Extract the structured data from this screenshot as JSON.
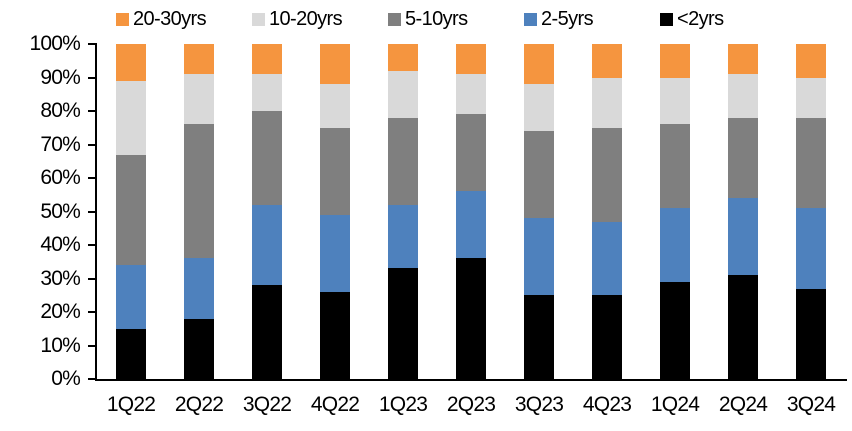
{
  "chart_data": {
    "type": "bar",
    "subtype": "stacked-100-percent",
    "title": "",
    "xlabel": "",
    "ylabel": "",
    "ylim": [
      0,
      100
    ],
    "grid": false,
    "legend_position": "top",
    "categories": [
      "1Q22",
      "2Q22",
      "3Q22",
      "4Q22",
      "1Q23",
      "2Q23",
      "3Q23",
      "4Q23",
      "1Q24",
      "2Q24",
      "3Q24"
    ],
    "series": [
      {
        "name": "<2yrs",
        "color": "#000000",
        "values": [
          15,
          18,
          28,
          26,
          33,
          36,
          25,
          25,
          29,
          31,
          27
        ]
      },
      {
        "name": "2-5yrs",
        "color": "#4E81BD",
        "values": [
          19,
          18,
          24,
          23,
          19,
          20,
          23,
          22,
          22,
          23,
          24
        ]
      },
      {
        "name": "5-10yrs",
        "color": "#7F7F7F",
        "values": [
          33,
          40,
          28,
          26,
          26,
          23,
          26,
          28,
          25,
          24,
          27
        ]
      },
      {
        "name": "10-20yrs",
        "color": "#D9D9D9",
        "values": [
          22,
          15,
          11,
          13,
          14,
          12,
          14,
          15,
          14,
          13,
          12
        ]
      },
      {
        "name": "20-30yrs",
        "color": "#F5953F",
        "values": [
          11,
          9,
          9,
          12,
          8,
          9,
          12,
          10,
          10,
          9,
          10
        ]
      }
    ],
    "legend_order": [
      "20-30yrs",
      "10-20yrs",
      "5-10yrs",
      "2-5yrs",
      "<2yrs"
    ],
    "y_ticks": [
      "0%",
      "10%",
      "20%",
      "30%",
      "40%",
      "50%",
      "60%",
      "70%",
      "80%",
      "90%",
      "100%"
    ]
  }
}
